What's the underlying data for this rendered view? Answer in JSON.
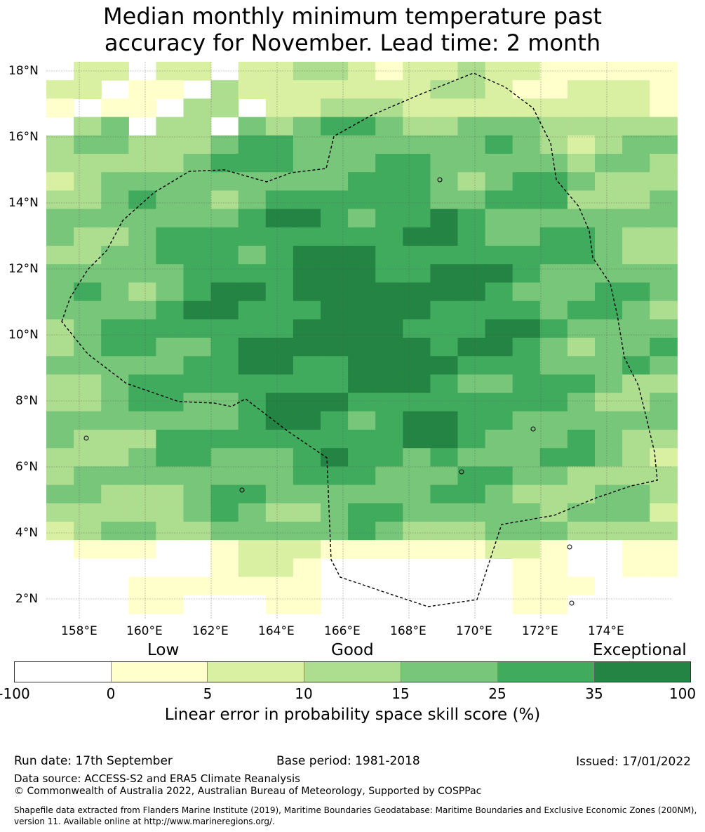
{
  "title": {
    "line1": "Median monthly minimum temperature past",
    "line2": "accuracy for November. Lead time: 2 month"
  },
  "map": {
    "lat_labels": [
      "18°N",
      "16°N",
      "14°N",
      "12°N",
      "10°N",
      "8°N",
      "6°N",
      "4°N",
      "2°N"
    ],
    "lon_labels": [
      "158°E",
      "160°E",
      "162°E",
      "164°E",
      "166°E",
      "168°E",
      "170°E",
      "172°E",
      "174°E"
    ],
    "skill_colors": [
      "#ffffff",
      "#ffffcc",
      "#d9f0a3",
      "#addd8e",
      "#78c679",
      "#41ab5d",
      "#238443"
    ]
  },
  "legend": {
    "categories": [
      "Low",
      "Good",
      "Exceptional"
    ],
    "ticks": [
      "-100",
      "0",
      "5",
      "10",
      "15",
      "25",
      "35",
      "100"
    ],
    "label": "Linear error in probability space skill score (%)"
  },
  "footer": {
    "run_date": "Run date: 17th September",
    "base_period": "Base period: 1981-2018",
    "issued": "Issued: 17/01/2022",
    "data_source": "Data source: ACCESS-S2 and ERA5 Climate Reanalysis",
    "copyright": "© Commonwealth of Australia 2022, Australian Bureau of Meteorology, Supported by COSPPac",
    "shapefile": "Shapefile data extracted from Flanders Marine Institute (2019), Maritime Boundaries Geodatabase: Maritime Boundaries and Exclusive Economic Zones (200NM), version 11. Available online at http://www.marineregions.org/."
  }
}
